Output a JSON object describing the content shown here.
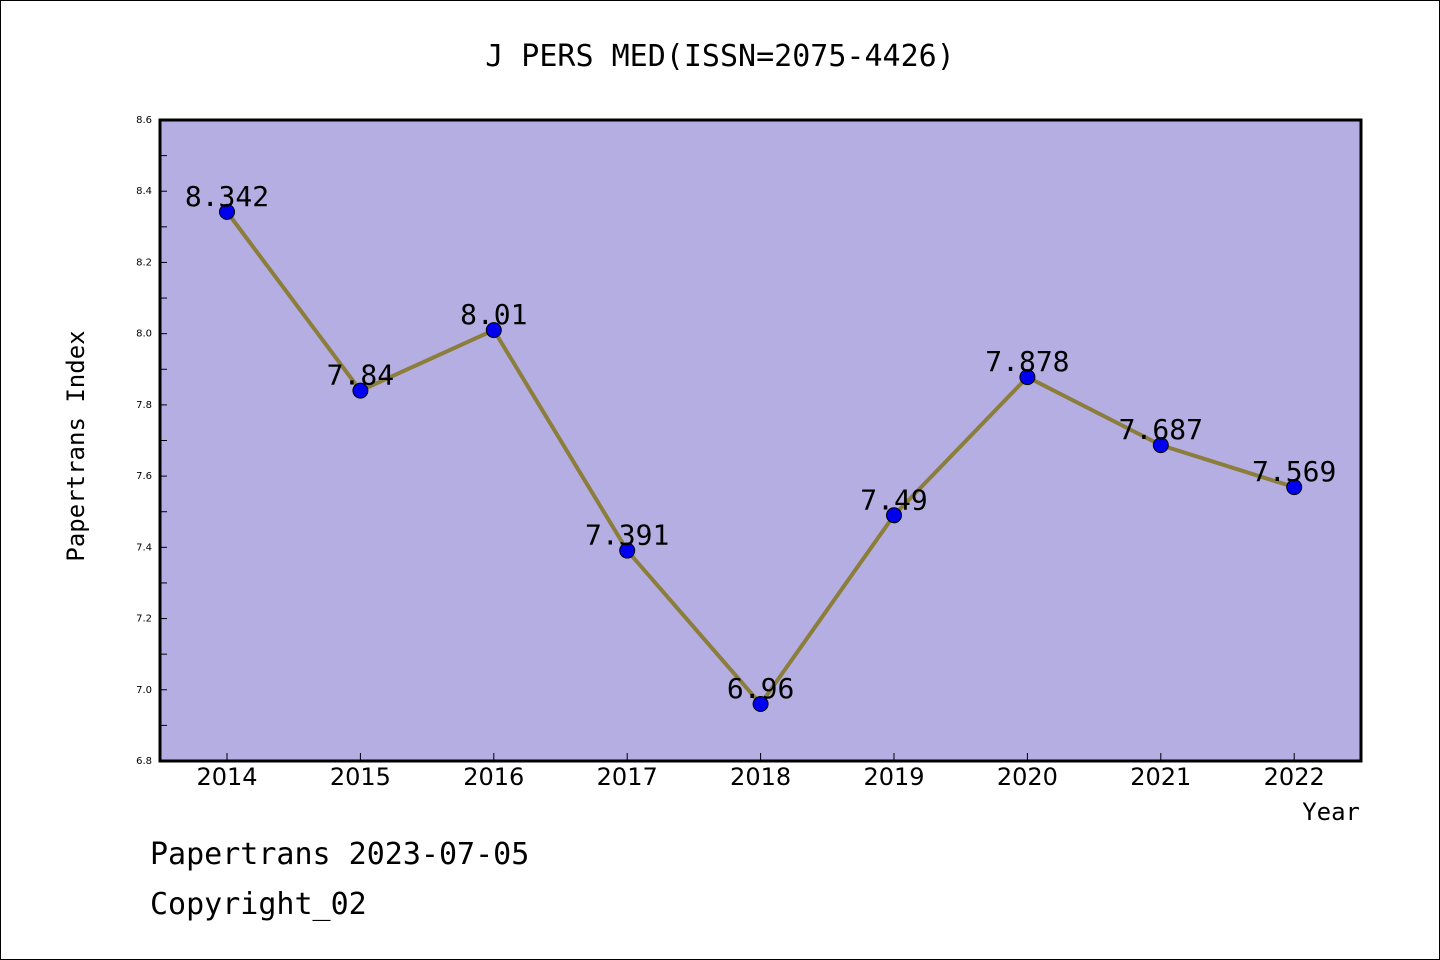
{
  "chart_data": {
    "type": "line",
    "title": "J PERS MED(ISSN=2075-4426)",
    "xlabel": "Year",
    "ylabel": "Papertrans Index",
    "categories": [
      "2014",
      "2015",
      "2016",
      "2017",
      "2018",
      "2019",
      "2020",
      "2021",
      "2022"
    ],
    "series": [
      {
        "values": [
          8.342,
          7.84,
          8.01,
          7.391,
          6.96,
          7.49,
          7.878,
          7.687,
          7.569
        ]
      }
    ],
    "value_labels": [
      "8.342",
      "7.84",
      "8.01",
      "7.391",
      "6.96",
      "7.49",
      "7.878",
      "7.687",
      "7.569"
    ],
    "ylim": [
      6.8,
      8.6
    ],
    "yticks": [
      "6.8",
      "7.0",
      "7.2",
      "7.4",
      "7.6",
      "7.8",
      "8.0",
      "8.2",
      "8.4",
      "8.6"
    ],
    "grid": false,
    "colors": {
      "plot_background": "#b4aee2",
      "line": "#8b7d3a",
      "marker": "#0000ee"
    }
  },
  "footer": {
    "line1": "Papertrans 2023-07-05",
    "line2": "Copyright_02"
  }
}
